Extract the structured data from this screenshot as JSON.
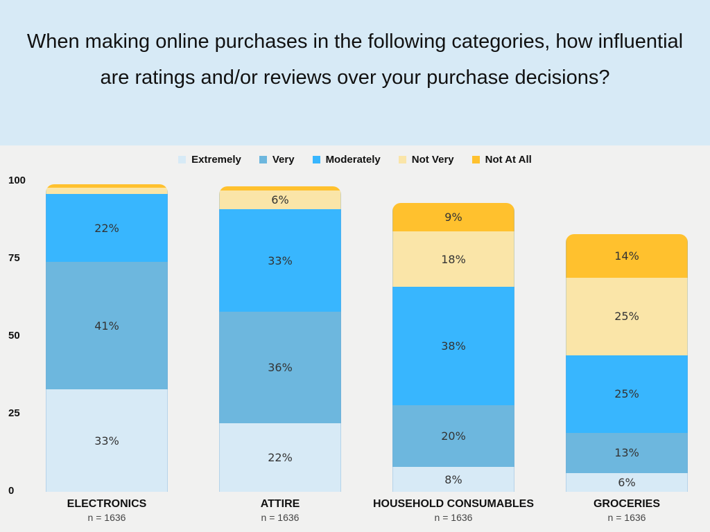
{
  "title": "When making online purchases in the following categories, how influential are ratings and/or reviews over your purchase decisions?",
  "chart_data": {
    "type": "bar",
    "stacked": true,
    "title": "When making online purchases in the following categories, how influential are ratings and/or reviews over your purchase decisions?",
    "categories": [
      "ELECTRONICS",
      "ATTIRE",
      "HOUSEHOLD CONSUMABLES",
      "GROCERIES"
    ],
    "sample_sizes": [
      "n = 1636",
      "n = 1636",
      "n = 1636",
      "n = 1636"
    ],
    "series": [
      {
        "name": "Extremely",
        "color": "#d7eaf6",
        "values": [
          33,
          22,
          8,
          6
        ],
        "labels": [
          "33%",
          "22%",
          "8%",
          "6%"
        ]
      },
      {
        "name": "Very",
        "color": "#6db7de",
        "values": [
          41,
          36,
          20,
          13
        ],
        "labels": [
          "41%",
          "36%",
          "20%",
          "13%"
        ]
      },
      {
        "name": "Moderately",
        "color": "#38b6fe",
        "values": [
          22,
          33,
          38,
          25
        ],
        "labels": [
          "22%",
          "33%",
          "38%",
          "25%"
        ]
      },
      {
        "name": "Not Very",
        "color": "#fae5a8",
        "values": [
          2,
          6,
          18,
          25
        ],
        "labels": [
          "",
          "6%",
          "18%",
          "25%"
        ]
      },
      {
        "name": "Not At All",
        "color": "#ffc12e",
        "values": [
          1,
          1.5,
          9,
          14
        ],
        "labels": [
          "",
          "",
          "9%",
          "14%"
        ]
      }
    ],
    "yticks": [
      "0",
      "25",
      "50",
      "75",
      "100"
    ],
    "ylim": [
      0,
      100
    ],
    "legend": "top-center",
    "grid": false
  }
}
